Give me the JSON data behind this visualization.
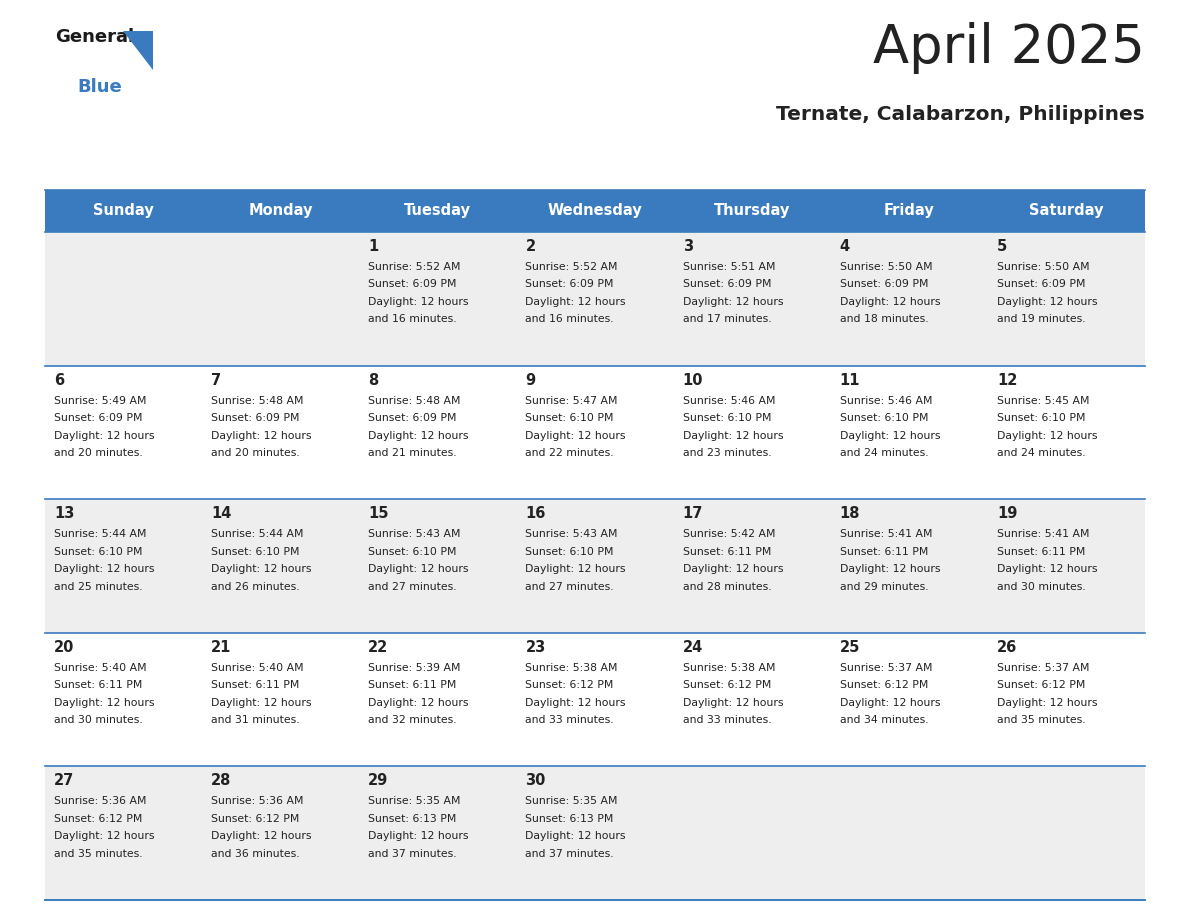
{
  "title": "April 2025",
  "subtitle": "Ternate, Calabarzon, Philippines",
  "header_color": "#3a7bbf",
  "header_text_color": "#ffffff",
  "day_names": [
    "Sunday",
    "Monday",
    "Tuesday",
    "Wednesday",
    "Thursday",
    "Friday",
    "Saturday"
  ],
  "background_color": "#ffffff",
  "cell_bg_even": "#eeeeee",
  "cell_bg_odd": "#ffffff",
  "grid_line_color": "#3a7bbf",
  "text_color": "#222222",
  "weeks": [
    [
      {
        "day": null,
        "sunrise": null,
        "sunset": null,
        "daylight": null
      },
      {
        "day": null,
        "sunrise": null,
        "sunset": null,
        "daylight": null
      },
      {
        "day": 1,
        "sunrise": "5:52 AM",
        "sunset": "6:09 PM",
        "daylight": "12 hours\nand 16 minutes."
      },
      {
        "day": 2,
        "sunrise": "5:52 AM",
        "sunset": "6:09 PM",
        "daylight": "12 hours\nand 16 minutes."
      },
      {
        "day": 3,
        "sunrise": "5:51 AM",
        "sunset": "6:09 PM",
        "daylight": "12 hours\nand 17 minutes."
      },
      {
        "day": 4,
        "sunrise": "5:50 AM",
        "sunset": "6:09 PM",
        "daylight": "12 hours\nand 18 minutes."
      },
      {
        "day": 5,
        "sunrise": "5:50 AM",
        "sunset": "6:09 PM",
        "daylight": "12 hours\nand 19 minutes."
      }
    ],
    [
      {
        "day": 6,
        "sunrise": "5:49 AM",
        "sunset": "6:09 PM",
        "daylight": "12 hours\nand 20 minutes."
      },
      {
        "day": 7,
        "sunrise": "5:48 AM",
        "sunset": "6:09 PM",
        "daylight": "12 hours\nand 20 minutes."
      },
      {
        "day": 8,
        "sunrise": "5:48 AM",
        "sunset": "6:09 PM",
        "daylight": "12 hours\nand 21 minutes."
      },
      {
        "day": 9,
        "sunrise": "5:47 AM",
        "sunset": "6:10 PM",
        "daylight": "12 hours\nand 22 minutes."
      },
      {
        "day": 10,
        "sunrise": "5:46 AM",
        "sunset": "6:10 PM",
        "daylight": "12 hours\nand 23 minutes."
      },
      {
        "day": 11,
        "sunrise": "5:46 AM",
        "sunset": "6:10 PM",
        "daylight": "12 hours\nand 24 minutes."
      },
      {
        "day": 12,
        "sunrise": "5:45 AM",
        "sunset": "6:10 PM",
        "daylight": "12 hours\nand 24 minutes."
      }
    ],
    [
      {
        "day": 13,
        "sunrise": "5:44 AM",
        "sunset": "6:10 PM",
        "daylight": "12 hours\nand 25 minutes."
      },
      {
        "day": 14,
        "sunrise": "5:44 AM",
        "sunset": "6:10 PM",
        "daylight": "12 hours\nand 26 minutes."
      },
      {
        "day": 15,
        "sunrise": "5:43 AM",
        "sunset": "6:10 PM",
        "daylight": "12 hours\nand 27 minutes."
      },
      {
        "day": 16,
        "sunrise": "5:43 AM",
        "sunset": "6:10 PM",
        "daylight": "12 hours\nand 27 minutes."
      },
      {
        "day": 17,
        "sunrise": "5:42 AM",
        "sunset": "6:11 PM",
        "daylight": "12 hours\nand 28 minutes."
      },
      {
        "day": 18,
        "sunrise": "5:41 AM",
        "sunset": "6:11 PM",
        "daylight": "12 hours\nand 29 minutes."
      },
      {
        "day": 19,
        "sunrise": "5:41 AM",
        "sunset": "6:11 PM",
        "daylight": "12 hours\nand 30 minutes."
      }
    ],
    [
      {
        "day": 20,
        "sunrise": "5:40 AM",
        "sunset": "6:11 PM",
        "daylight": "12 hours\nand 30 minutes."
      },
      {
        "day": 21,
        "sunrise": "5:40 AM",
        "sunset": "6:11 PM",
        "daylight": "12 hours\nand 31 minutes."
      },
      {
        "day": 22,
        "sunrise": "5:39 AM",
        "sunset": "6:11 PM",
        "daylight": "12 hours\nand 32 minutes."
      },
      {
        "day": 23,
        "sunrise": "5:38 AM",
        "sunset": "6:12 PM",
        "daylight": "12 hours\nand 33 minutes."
      },
      {
        "day": 24,
        "sunrise": "5:38 AM",
        "sunset": "6:12 PM",
        "daylight": "12 hours\nand 33 minutes."
      },
      {
        "day": 25,
        "sunrise": "5:37 AM",
        "sunset": "6:12 PM",
        "daylight": "12 hours\nand 34 minutes."
      },
      {
        "day": 26,
        "sunrise": "5:37 AM",
        "sunset": "6:12 PM",
        "daylight": "12 hours\nand 35 minutes."
      }
    ],
    [
      {
        "day": 27,
        "sunrise": "5:36 AM",
        "sunset": "6:12 PM",
        "daylight": "12 hours\nand 35 minutes."
      },
      {
        "day": 28,
        "sunrise": "5:36 AM",
        "sunset": "6:12 PM",
        "daylight": "12 hours\nand 36 minutes."
      },
      {
        "day": 29,
        "sunrise": "5:35 AM",
        "sunset": "6:13 PM",
        "daylight": "12 hours\nand 37 minutes."
      },
      {
        "day": 30,
        "sunrise": "5:35 AM",
        "sunset": "6:13 PM",
        "daylight": "12 hours\nand 37 minutes."
      },
      {
        "day": null,
        "sunrise": null,
        "sunset": null,
        "daylight": null
      },
      {
        "day": null,
        "sunrise": null,
        "sunset": null,
        "daylight": null
      },
      {
        "day": null,
        "sunrise": null,
        "sunset": null,
        "daylight": null
      }
    ]
  ]
}
